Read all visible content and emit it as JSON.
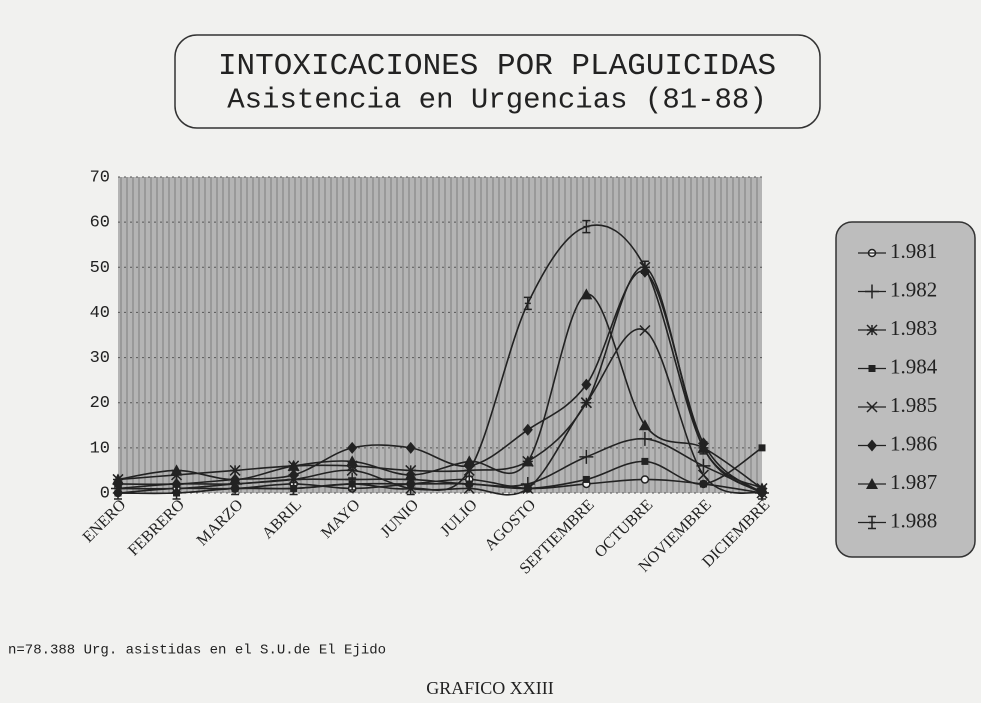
{
  "chart_data": {
    "type": "line",
    "title": "INTOXICACIONES POR PLAGUICIDAS",
    "subtitle": "Asistencia en Urgencias (81-88)",
    "categories": [
      "ENERO",
      "FEBRERO",
      "MARZO",
      "ABRIL",
      "MAYO",
      "JUNIO",
      "JULIO",
      "AGOSTO",
      "SEPTIEMBRE",
      "OCTUBRE",
      "NOVIEMBRE",
      "DICIEMBRE"
    ],
    "series": [
      {
        "name": "1.981",
        "color": "#222222",
        "marker": "circle",
        "values": [
          0,
          1,
          1,
          2,
          1,
          2,
          3,
          1,
          2,
          3,
          2,
          0
        ]
      },
      {
        "name": "1.982",
        "color": "#222222",
        "marker": "plus",
        "values": [
          1,
          2,
          2,
          3,
          3,
          3,
          2,
          2,
          8,
          12,
          6,
          0
        ]
      },
      {
        "name": "1.983",
        "color": "#222222",
        "marker": "asterisk",
        "values": [
          3,
          4,
          5,
          6,
          6,
          5,
          5,
          7,
          20,
          50,
          10,
          1
        ]
      },
      {
        "name": "1.984",
        "color": "#222222",
        "marker": "square",
        "values": [
          0,
          0,
          1,
          1,
          2,
          2,
          2,
          1,
          3,
          7,
          2,
          10
        ]
      },
      {
        "name": "1.985",
        "color": "#222222",
        "marker": "cross",
        "values": [
          1,
          1,
          2,
          3,
          5,
          1,
          1,
          1,
          20,
          36,
          4,
          0
        ]
      },
      {
        "name": "1.986",
        "color": "#222222",
        "marker": "diamond",
        "values": [
          2,
          2,
          3,
          4,
          10,
          10,
          6,
          14,
          24,
          49,
          11,
          0
        ]
      },
      {
        "name": "1.987",
        "color": "#222222",
        "marker": "triangle",
        "values": [
          3,
          5,
          3,
          6,
          7,
          4,
          7,
          7,
          44,
          15,
          10,
          1
        ]
      },
      {
        "name": "1.988",
        "color": "#222222",
        "marker": "ibar",
        "values": [
          0,
          0,
          1,
          1,
          2,
          1,
          5,
          42,
          59,
          50,
          10,
          0
        ]
      }
    ],
    "ylim": [
      0,
      70
    ],
    "yticks": [
      0,
      10,
      20,
      30,
      40,
      50,
      60,
      70
    ],
    "grid": true,
    "legend": "right",
    "footnote": "n=78.388 Urg. asistidas en el S.U.de El Ejido",
    "caption": "GRAFICO XXIII"
  }
}
